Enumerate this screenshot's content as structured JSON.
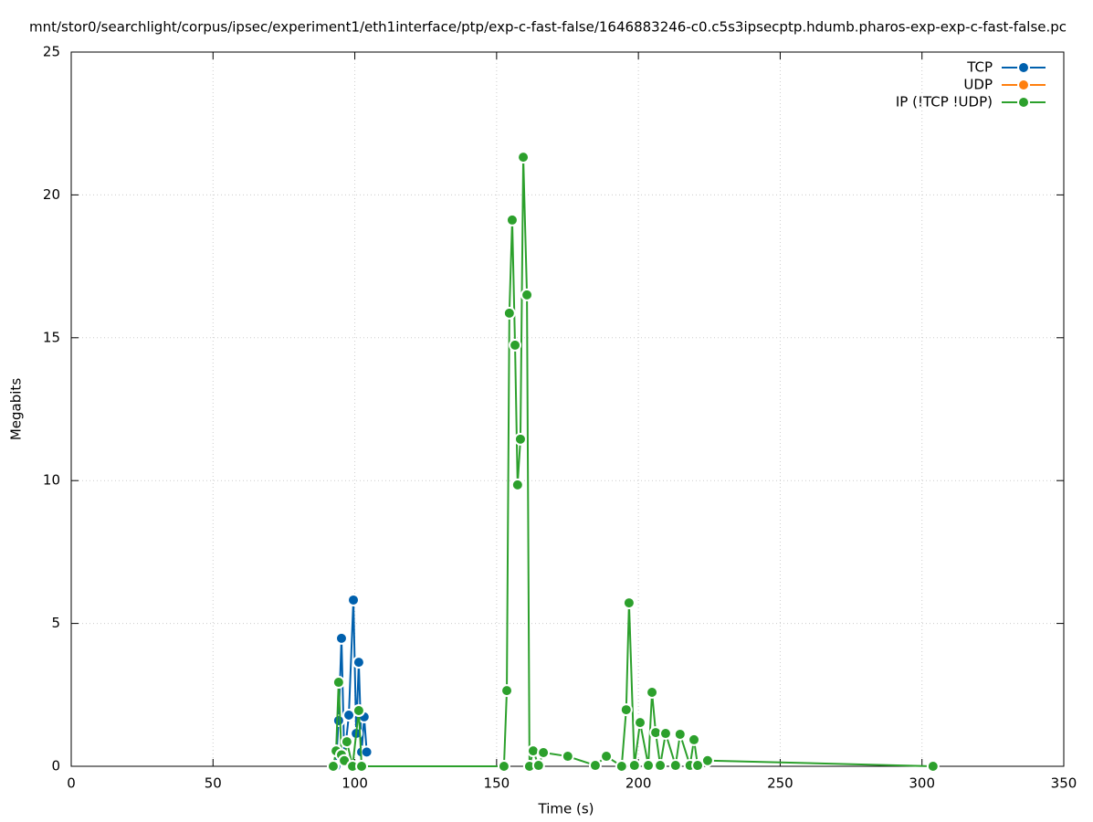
{
  "chart_data": {
    "type": "line",
    "title": "mnt/stor0/searchlight/corpus/ipsec/experiment1/eth1interface/ptp/exp-c-fast-false/1646883246-c0.c5s3ipsecptp.hdumb.pharos-exp-exp-c-fast-false.pc",
    "x_label": "Time (s)",
    "y_label": "Megabits",
    "xlim": [
      0,
      350
    ],
    "xticks": [
      0,
      50,
      100,
      150,
      200,
      250,
      300,
      350
    ],
    "ylim": [
      0,
      25
    ],
    "yticks": [
      0,
      5,
      10,
      15,
      20,
      25
    ],
    "grid": true,
    "legend": "top-right",
    "series": [
      {
        "name": "TCP",
        "color": "#0060ad",
        "x": [
          93.3,
          94.3,
          95.3,
          96.3,
          97.9,
          99.5,
          100.5,
          101.4,
          102.4,
          103.3,
          104.2
        ],
        "values": [
          0,
          1.6,
          4.48,
          0.3,
          1.79,
          5.82,
          1.15,
          3.64,
          0.5,
          1.73,
          0.5
        ]
      },
      {
        "name": "UDP",
        "color": "#ff7f0e",
        "x": [],
        "values": []
      },
      {
        "name": "IP (!TCP  !UDP)",
        "color": "#2ca02c",
        "x": [
          92.4,
          93.4,
          94.3,
          95.3,
          96.3,
          97.2,
          99.2,
          101.4,
          102.4,
          152.6,
          153.6,
          154.5,
          155.5,
          156.5,
          157.4,
          158.4,
          159.4,
          160.7,
          161.6,
          162.9,
          164.8,
          166.5,
          175.1,
          184.8,
          188.7,
          194.1,
          195.7,
          196.7,
          198.6,
          200.6,
          203.5,
          204.8,
          206.1,
          207.7,
          209.6,
          213.1,
          214.7,
          218.2,
          219.6,
          220.9,
          224.4,
          303.9
        ],
        "values": [
          0,
          0.54,
          2.94,
          0.4,
          0.2,
          0.86,
          0,
          1.95,
          0,
          0,
          2.65,
          15.86,
          19.12,
          14.74,
          9.85,
          11.45,
          21.32,
          16.5,
          0,
          0.54,
          0.03,
          0.48,
          0.35,
          0.03,
          0.35,
          0,
          1.98,
          5.72,
          0.03,
          1.53,
          0.03,
          2.59,
          1.18,
          0.03,
          1.15,
          0.03,
          1.12,
          0.03,
          0.93,
          0.03,
          0.2,
          0
        ]
      }
    ]
  }
}
